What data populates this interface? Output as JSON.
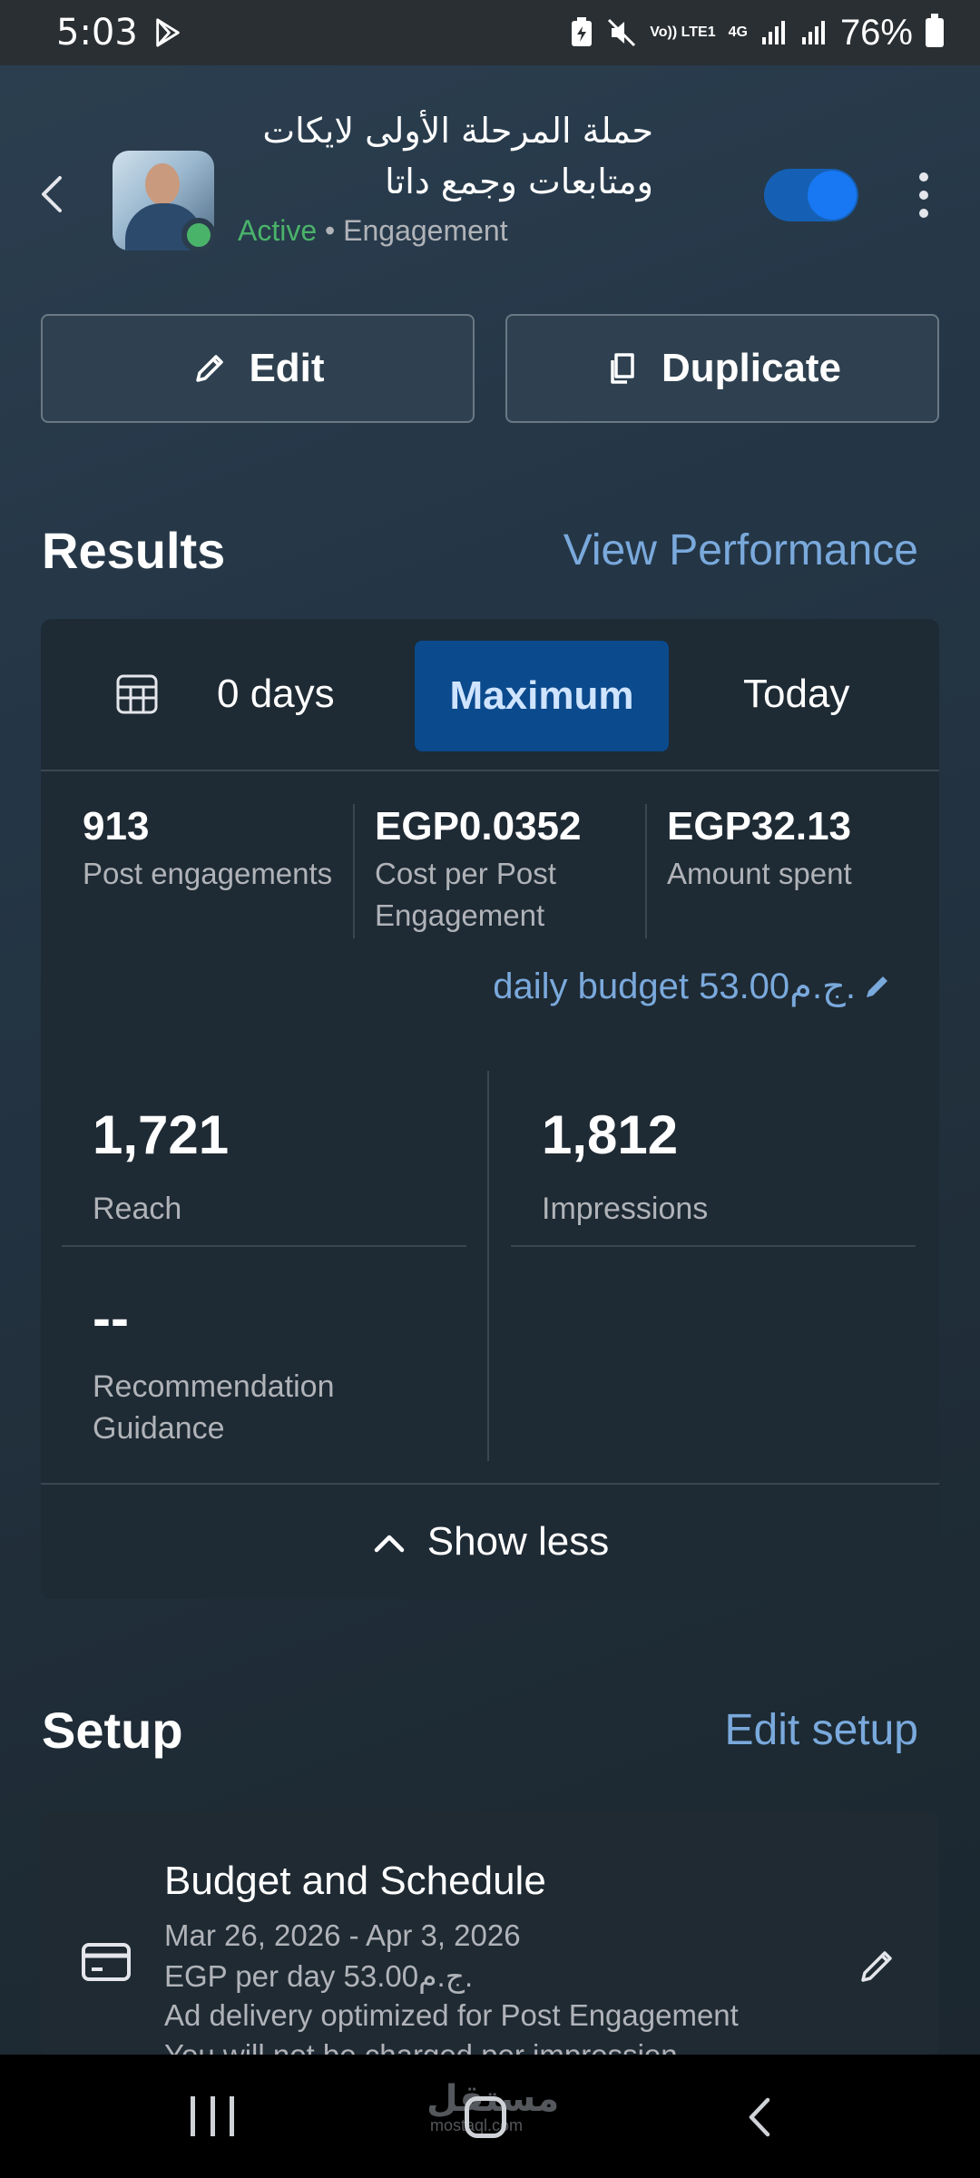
{
  "status_bar": {
    "time": "5:03",
    "volte": "Vo)) LTE1",
    "network": "4G",
    "battery": "76%"
  },
  "header": {
    "campaign_name": "حملة المرحلة الأولى لايكات ومتابعات وجمع داتا",
    "status": "Active",
    "separator": "•",
    "objective": "Engagement",
    "toggle_on": true
  },
  "actions": {
    "edit_label": "Edit",
    "duplicate_label": "Duplicate"
  },
  "results": {
    "title": "Results",
    "view_performance": "View Performance",
    "range": {
      "days": "0 days",
      "maximum": "Maximum",
      "today": "Today",
      "selected": "Maximum"
    },
    "metrics": [
      {
        "value": "913",
        "label": "Post engagements"
      },
      {
        "value": "EGP0.0352",
        "label": "Cost per Post Engagement"
      },
      {
        "value": "EGP32.13",
        "label": "Amount spent"
      }
    ],
    "daily_budget": "daily budget 53.00ج.م.",
    "stats": {
      "reach": {
        "value": "1,721",
        "label": "Reach"
      },
      "impressions": {
        "value": "1,812",
        "label": "Impressions"
      },
      "recommendation": {
        "value": "--",
        "label": "Recommendation Guidance"
      }
    },
    "show_less": "Show less"
  },
  "setup": {
    "title": "Setup",
    "edit_setup": "Edit setup",
    "budget_card": {
      "title": "Budget and Schedule",
      "dates": "Mar 26, 2026 - Apr 3, 2026",
      "per_day": "EGP per day 53.00ج.م.",
      "optimization": "Ad delivery optimized for Post Engagement",
      "charge": "You will not be charged per impression"
    }
  },
  "watermark": {
    "text": "مستقل",
    "sub": "mostaql.com"
  },
  "colors": {
    "accent_link": "#7aa9dc",
    "active_green": "#4ab36a",
    "toggle_blue": "#1877f2",
    "selected_range": "#0b4a8c"
  }
}
